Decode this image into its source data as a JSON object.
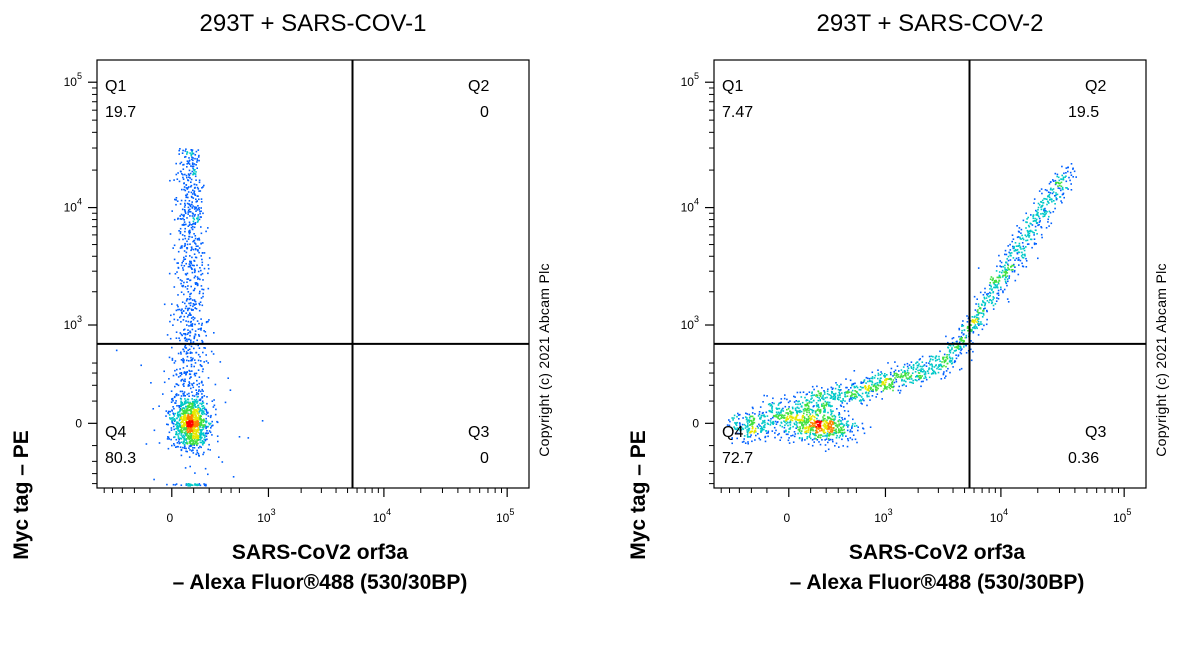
{
  "chart_data": [
    {
      "type": "scatter",
      "title": "293T + SARS-COV-1",
      "xlabel_line1": "SARS-CoV2 orf3a",
      "xlabel_line2": "– Alexa Fluor®488 (530/30BP)",
      "ylabel": "Myc tag – PE",
      "copyright": "Copyright (c) 2021 Abcam Plc",
      "x_ticks": [
        "0",
        "10^3",
        "10^4",
        "10^5"
      ],
      "y_ticks": [
        "0",
        "10^3",
        "10^4",
        "10^5"
      ],
      "quadrants": [
        {
          "name": "Q1",
          "value": "19.7"
        },
        {
          "name": "Q2",
          "value": "0"
        },
        {
          "name": "Q3",
          "value": "0"
        },
        {
          "name": "Q4",
          "value": "80.3"
        }
      ],
      "gate": {
        "x": 5500,
        "y": 650
      },
      "populations": [
        {
          "label": "dense-core",
          "cx": 80,
          "cy": 0,
          "sx": 70,
          "sy": 100,
          "n": 700
        },
        {
          "label": "vertical-stream",
          "cx": 80,
          "cy": 3000,
          "sx": 60,
          "sy": 1.0,
          "n": 650
        }
      ]
    },
    {
      "type": "scatter",
      "title": "293T + SARS-COV-2",
      "xlabel_line1": "SARS-CoV2 orf3a",
      "xlabel_line2": "– Alexa Fluor®488 (530/30BP)",
      "ylabel": "Myc tag – PE",
      "copyright": "Copyright (c) 2021 Abcam Plc",
      "x_ticks": [
        "0",
        "10^3",
        "10^4",
        "10^5"
      ],
      "y_ticks": [
        "0",
        "10^3",
        "10^4",
        "10^5"
      ],
      "quadrants": [
        {
          "name": "Q1",
          "value": "7.47"
        },
        {
          "name": "Q2",
          "value": "19.5"
        },
        {
          "name": "Q3",
          "value": "0.36"
        },
        {
          "name": "Q4",
          "value": "72.7"
        }
      ],
      "gate": {
        "x": 5500,
        "y": 650
      },
      "populations": [
        {
          "label": "diagonal-trend",
          "n": 1500
        }
      ]
    }
  ]
}
